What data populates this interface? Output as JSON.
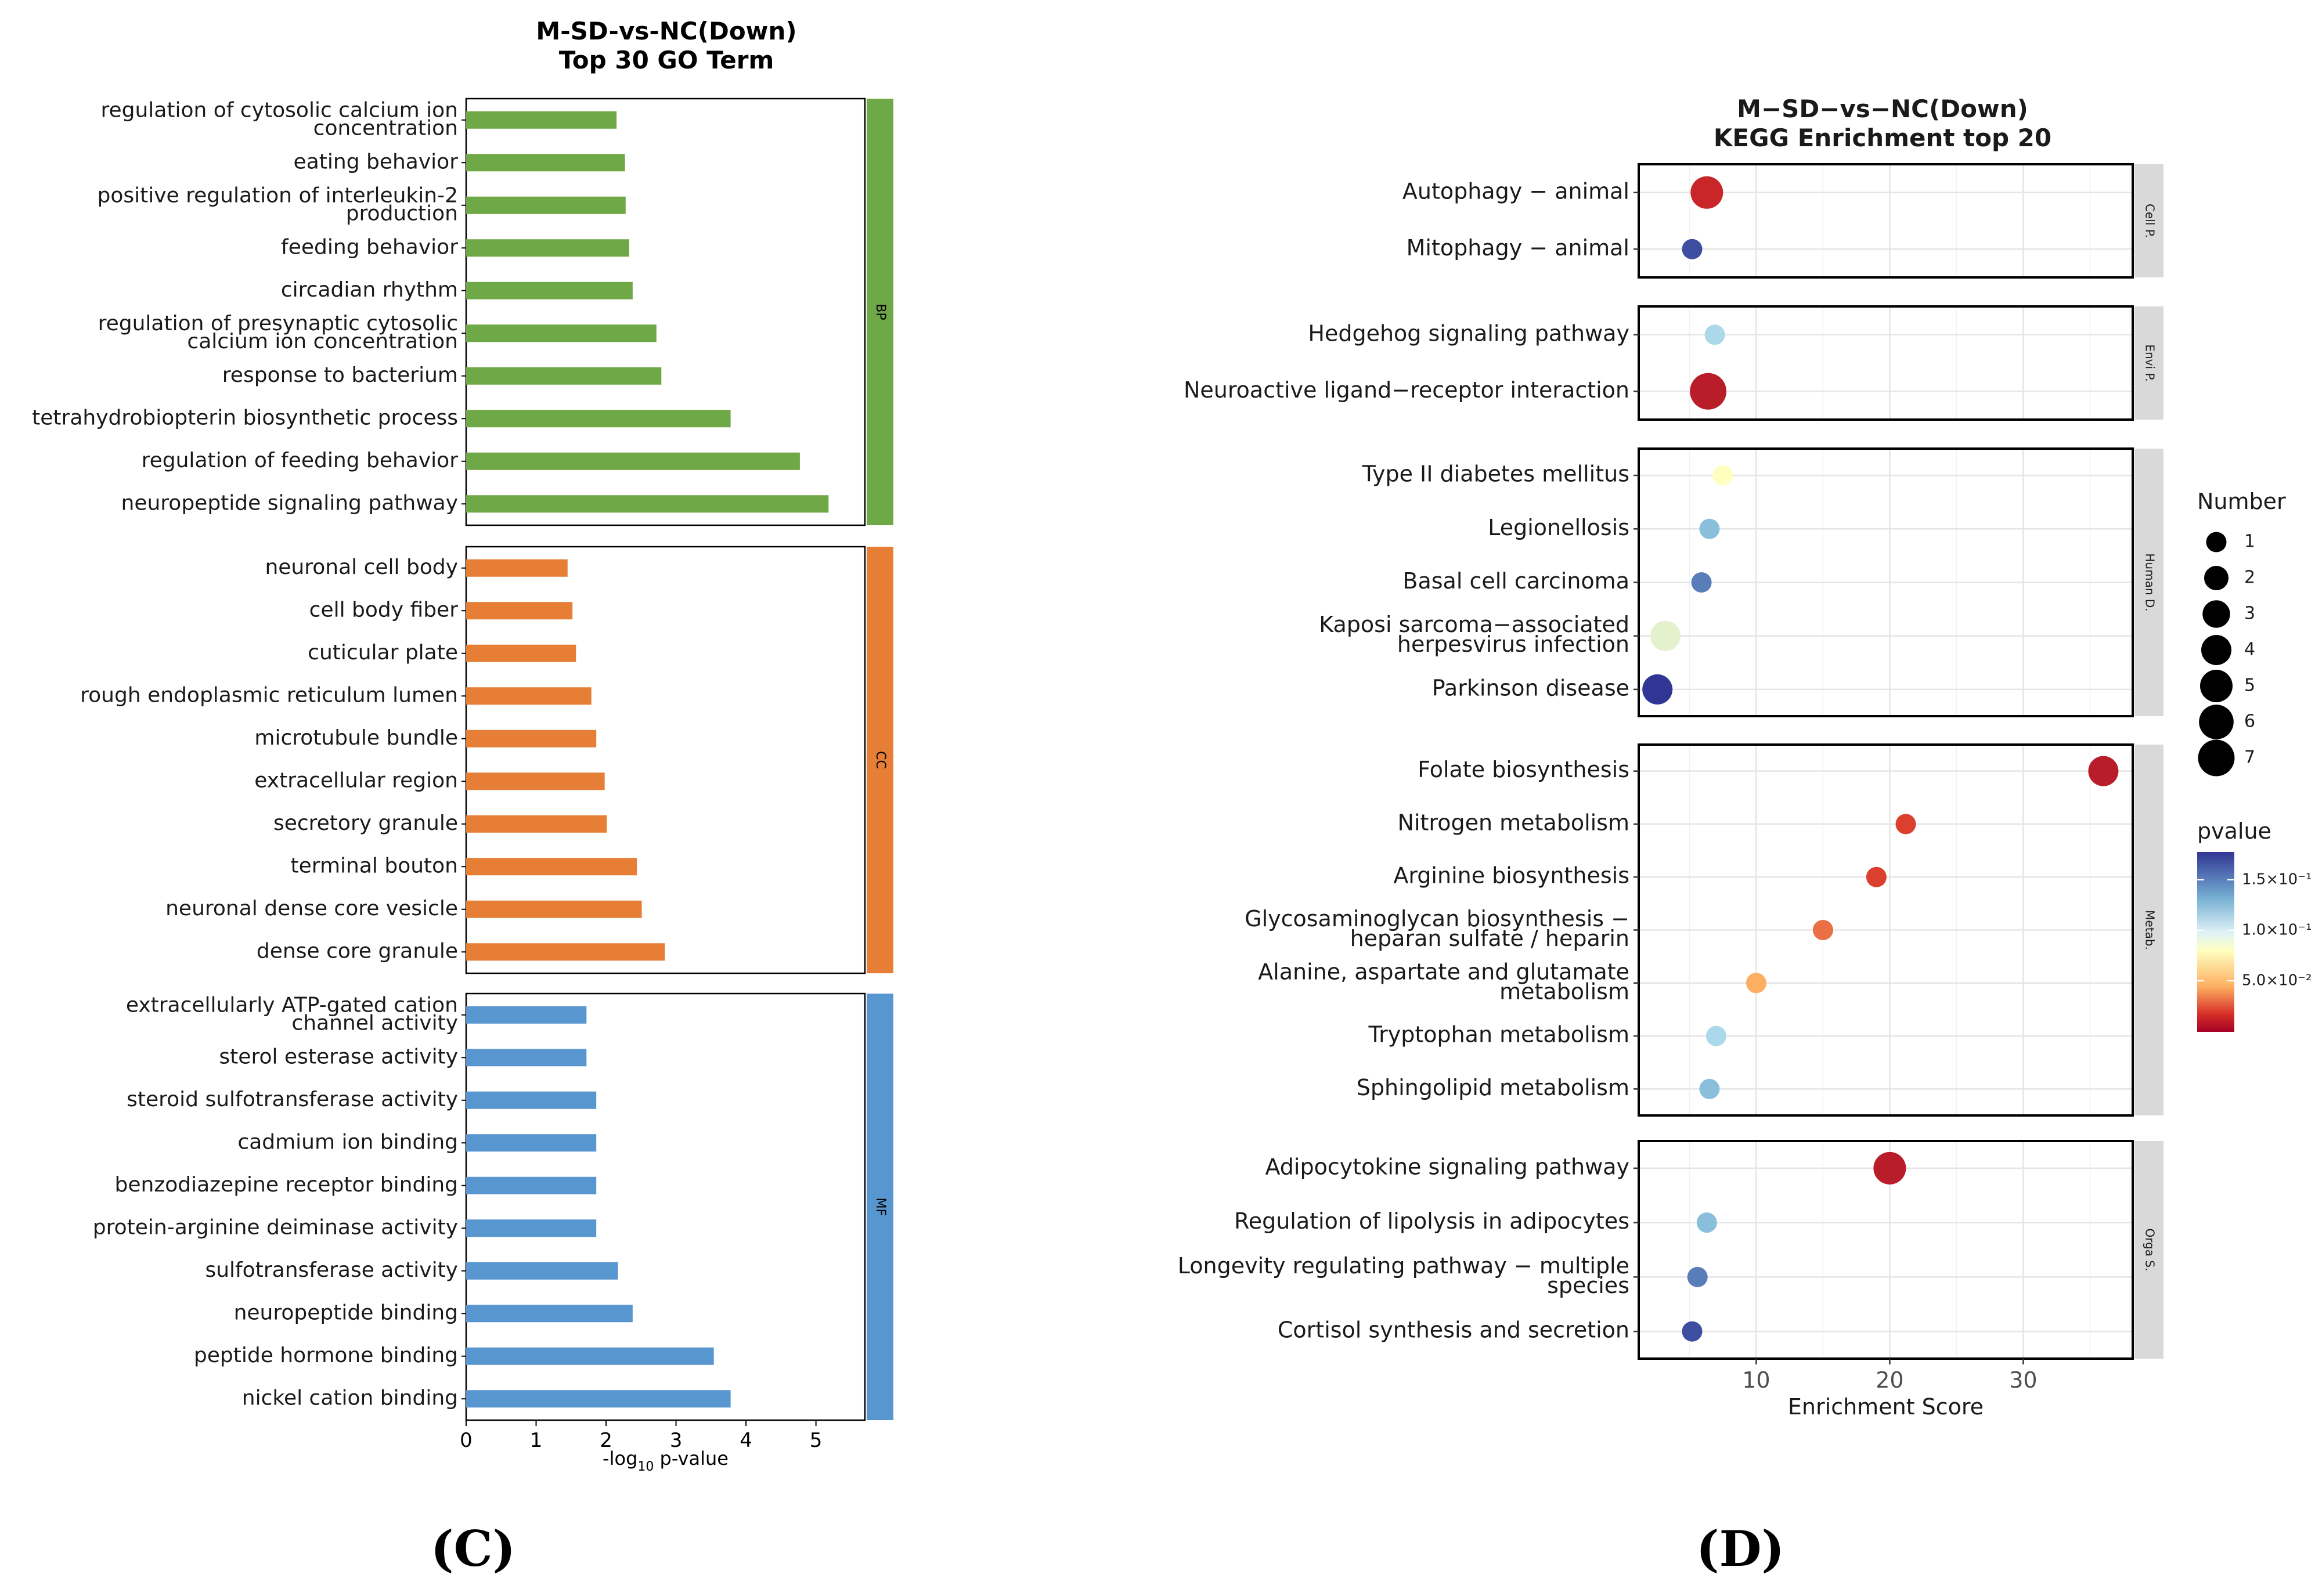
{
  "chart_data": [
    {
      "type": "bar",
      "orientation": "horizontal",
      "title": "M-SD-vs-NC(Down)",
      "subtitle": "Top 30 GO Term",
      "xlabel": "-log10 p-value",
      "xlabel_parts": {
        "prefix": "-log",
        "sub": "10",
        "suffix": " p-value"
      },
      "xlim": [
        0,
        5.7
      ],
      "xticks": [
        "0",
        "1",
        "2",
        "3",
        "4",
        "5"
      ],
      "groups": [
        {
          "name": "BP",
          "color": "#6fa846",
          "categories": [
            "regulation of cytosolic calcium ion|concentration",
            "eating behavior",
            "positive regulation of interleukin-2|production",
            "feeding behavior",
            "circadian rhythm",
            "regulation of presynaptic cytosolic|calcium ion concentration",
            "response to bacterium",
            "tetrahydrobiopterin biosynthetic process",
            "regulation of feeding behavior",
            "neuropeptide signaling pathway"
          ],
          "values": [
            2.15,
            2.27,
            2.28,
            2.33,
            2.38,
            2.72,
            2.79,
            3.78,
            4.77,
            5.18
          ]
        },
        {
          "name": "CC",
          "color": "#e67e35",
          "categories": [
            "neuronal cell body",
            "cell body fiber",
            "cuticular plate",
            "rough endoplasmic reticulum lumen",
            "microtubule bundle",
            "extracellular region",
            "secretory granule",
            "terminal bouton",
            "neuronal dense core vesicle",
            "dense core granule"
          ],
          "values": [
            1.45,
            1.52,
            1.57,
            1.79,
            1.86,
            1.98,
            2.01,
            2.44,
            2.51,
            2.84
          ]
        },
        {
          "name": "MF",
          "color": "#5896cf",
          "categories": [
            "extracellularly ATP-gated cation|channel activity",
            "sterol esterase activity",
            "steroid sulfotransferase activity",
            "cadmium ion binding",
            "benzodiazepine receptor binding",
            "protein-arginine deiminase activity",
            "sulfotransferase activity",
            "neuropeptide binding",
            "peptide hormone binding",
            "nickel cation binding"
          ],
          "values": [
            1.72,
            1.72,
            1.86,
            1.86,
            1.86,
            1.86,
            2.17,
            2.38,
            3.54,
            3.78
          ]
        }
      ]
    },
    {
      "type": "scatter",
      "title": "M−SD−vs−NC(Down)",
      "subtitle": "KEGG Enrichment top 20",
      "xlabel": "Enrichment Score",
      "xlim": [
        1.2,
        38.2
      ],
      "xticks": [
        10,
        20,
        30
      ],
      "xminor": [
        5,
        15,
        25,
        35
      ],
      "groups": [
        {
          "name": "Cell P.",
          "categories": [
            "Autophagy − animal",
            "Mitophagy − animal"
          ],
          "x": [
            6.3,
            5.2
          ],
          "number": [
            5,
            1
          ],
          "pvalue": [
            0.03,
            0.17
          ]
        },
        {
          "name": "Envi P.",
          "categories": [
            "Hedgehog signaling pathway",
            "Neuroactive ligand−receptor interaction"
          ],
          "x": [
            6.9,
            6.4
          ],
          "number": [
            1,
            7
          ],
          "pvalue": [
            0.125,
            0.01
          ]
        },
        {
          "name": "Human D.",
          "categories": [
            "Type II diabetes mellitus",
            "Legionellosis",
            "Basal cell carcinoma",
            "Kaposi sarcoma−associated|herpesvirus infection",
            "Parkinson disease"
          ],
          "x": [
            7.5,
            6.5,
            5.9,
            3.2,
            2.6
          ],
          "number": [
            1,
            1,
            1,
            4,
            4
          ],
          "pvalue": [
            0.11,
            0.14,
            0.16,
            0.115,
            0.175
          ]
        },
        {
          "name": "Metab.",
          "categories": [
            "Folate biosynthesis",
            "Nitrogen metabolism",
            "Arginine biosynthesis",
            "Glycosaminoglycan biosynthesis −|heparan sulfate / heparin",
            "Alanine, aspartate and glutamate|metabolism",
            "Tryptophan metabolism",
            "Sphingolipid metabolism"
          ],
          "x": [
            36.0,
            21.2,
            19.0,
            15.0,
            10.0,
            7.0,
            6.5
          ],
          "number": [
            4,
            1,
            1,
            1,
            1,
            1,
            1
          ],
          "pvalue": [
            0.01,
            0.055,
            0.055,
            0.07,
            0.09,
            0.125,
            0.14
          ]
        },
        {
          "name": "Orga S.",
          "categories": [
            "Adipocytokine signaling pathway",
            "Regulation of lipolysis in adipocytes",
            "Longevity regulating pathway − multiple|species",
            "Cortisol synthesis and secretion"
          ],
          "x": [
            20.0,
            6.3,
            5.6,
            5.2
          ],
          "number": [
            5,
            1,
            1,
            1
          ],
          "pvalue": [
            0.01,
            0.14,
            0.16,
            0.17
          ]
        }
      ],
      "legend_number": {
        "title": "Number",
        "labels": [
          "1",
          "2",
          "3",
          "4",
          "5",
          "6",
          "7"
        ]
      },
      "legend_pvalue": {
        "title": "pvalue",
        "ticks": [
          "1.5×10⁻¹",
          "1.0×10⁻¹",
          "5.0×10⁻²"
        ]
      }
    }
  ],
  "panel_labels": [
    "(C)",
    "(D)"
  ],
  "colors": {
    "bp": "#6fa846",
    "cc": "#e67e35",
    "mf": "#5896cf",
    "strip": "#d9d9d9",
    "grid": "#ebebeb"
  }
}
